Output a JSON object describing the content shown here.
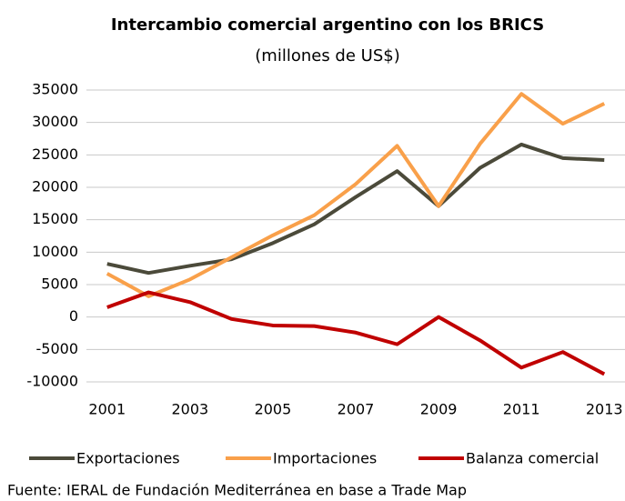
{
  "chart_data": {
    "type": "line",
    "title": "Intercambio comercial argentino con los BRICS",
    "subtitle": "(millones de US$)",
    "source": "Fuente: IERAL de Fundación Mediterránea en base a Trade Map",
    "x": [
      2001,
      2002,
      2003,
      2004,
      2005,
      2006,
      2007,
      2008,
      2009,
      2010,
      2011,
      2012,
      2013
    ],
    "xlim": [
      2000.5,
      2013.5
    ],
    "xticks": [
      2001,
      2003,
      2005,
      2007,
      2009,
      2011,
      2013
    ],
    "ylim": [
      -10000,
      35000
    ],
    "yticks": [
      -10000,
      -5000,
      0,
      5000,
      10000,
      15000,
      20000,
      25000,
      30000,
      35000
    ],
    "grid": true,
    "legend": "bottom",
    "series": [
      {
        "name": "Exportaciones",
        "color": "#4b4a3a",
        "values": [
          8200,
          6800,
          7900,
          8900,
          11400,
          14300,
          18500,
          22500,
          17100,
          23000,
          26600,
          24500,
          24200
        ]
      },
      {
        "name": "Importaciones",
        "color": "#f9a04a",
        "values": [
          6700,
          3200,
          5800,
          9200,
          12600,
          15700,
          20500,
          26400,
          17100,
          26700,
          34400,
          29800,
          32900
        ]
      },
      {
        "name": "Balanza comercial",
        "color": "#c00000",
        "values": [
          1500,
          3800,
          2300,
          -300,
          -1300,
          -1400,
          -2400,
          -4200,
          0,
          -3600,
          -7800,
          -5400,
          -8800
        ]
      }
    ]
  }
}
